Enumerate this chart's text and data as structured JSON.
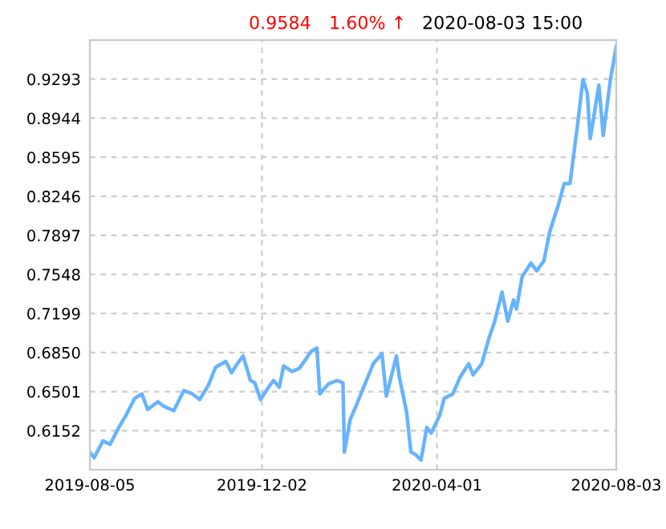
{
  "chart_data": {
    "type": "line",
    "annotations": [
      "0.9584",
      "1.60% ↑",
      "2020-08-03 15:00"
    ],
    "x": [
      "2019-08-05",
      "2019-08-08",
      "2019-08-14",
      "2019-08-19",
      "2019-08-25",
      "2019-08-30",
      "2019-09-05",
      "2019-09-10",
      "2019-09-14",
      "2019-09-21",
      "2019-09-25",
      "2019-10-02",
      "2019-10-09",
      "2019-10-15",
      "2019-10-20",
      "2019-10-26",
      "2019-10-31",
      "2019-11-07",
      "2019-11-11",
      "2019-11-15",
      "2019-11-19",
      "2019-11-24",
      "2019-11-27",
      "2019-12-01",
      "2019-12-06",
      "2019-12-10",
      "2019-12-14",
      "2019-12-17",
      "2019-12-23",
      "2019-12-28",
      "2020-01-05",
      "2020-01-09",
      "2020-01-11",
      "2020-01-17",
      "2020-01-23",
      "2020-01-27",
      "2020-01-28",
      "2020-02-01",
      "2020-02-05",
      "2020-02-10",
      "2020-02-17",
      "2020-02-23",
      "2020-02-26",
      "2020-03-04",
      "2020-03-06",
      "2020-03-11",
      "2020-03-14",
      "2020-03-17",
      "2020-03-21",
      "2020-03-25",
      "2020-03-28",
      "2020-04-03",
      "2020-04-06",
      "2020-04-12",
      "2020-04-17",
      "2020-04-23",
      "2020-04-26",
      "2020-05-02",
      "2020-05-07",
      "2020-05-11",
      "2020-05-16",
      "2020-05-20",
      "2020-05-24",
      "2020-05-26",
      "2020-05-30",
      "2020-06-05",
      "2020-06-09",
      "2020-06-14",
      "2020-06-18",
      "2020-06-24",
      "2020-06-28",
      "2020-07-02",
      "2020-07-07",
      "2020-07-11",
      "2020-07-14",
      "2020-07-16",
      "2020-07-22",
      "2020-07-25",
      "2020-07-30",
      "2020-08-03"
    ],
    "series": [
      {
        "color": "#66b3ff",
        "values": [
          0.596,
          0.591,
          0.606,
          0.603,
          0.618,
          0.629,
          0.644,
          0.648,
          0.634,
          0.641,
          0.637,
          0.633,
          0.651,
          0.648,
          0.643,
          0.656,
          0.672,
          0.677,
          0.667,
          0.675,
          0.682,
          0.66,
          0.658,
          0.643,
          0.653,
          0.66,
          0.654,
          0.673,
          0.668,
          0.671,
          0.686,
          0.689,
          0.648,
          0.657,
          0.66,
          0.658,
          0.596,
          0.625,
          0.637,
          0.653,
          0.675,
          0.684,
          0.646,
          0.682,
          0.663,
          0.632,
          0.596,
          0.594,
          0.589,
          0.618,
          0.613,
          0.629,
          0.644,
          0.648,
          0.663,
          0.675,
          0.665,
          0.675,
          0.698,
          0.713,
          0.739,
          0.713,
          0.732,
          0.724,
          0.753,
          0.765,
          0.758,
          0.767,
          0.793,
          0.817,
          0.836,
          0.836,
          0.886,
          0.929,
          0.917,
          0.876,
          0.924,
          0.879,
          0.929,
          0.9584
        ]
      }
    ],
    "xlim": [
      "2019-08-05",
      "2020-08-03"
    ],
    "xticks": [
      "2019-08-05",
      "2019-12-02",
      "2020-04-01",
      "2020-08-03"
    ],
    "ylim": [
      0.5803,
      0.9642
    ],
    "yticks": [
      0.6152,
      0.6501,
      {
        "value": 0.685,
        "label": "0.6850"
      },
      0.7199,
      0.7548,
      0.7897,
      0.8246,
      0.8595,
      0.8944,
      0.9293
    ],
    "grid": true,
    "line_style": "solid",
    "marker": "none"
  }
}
